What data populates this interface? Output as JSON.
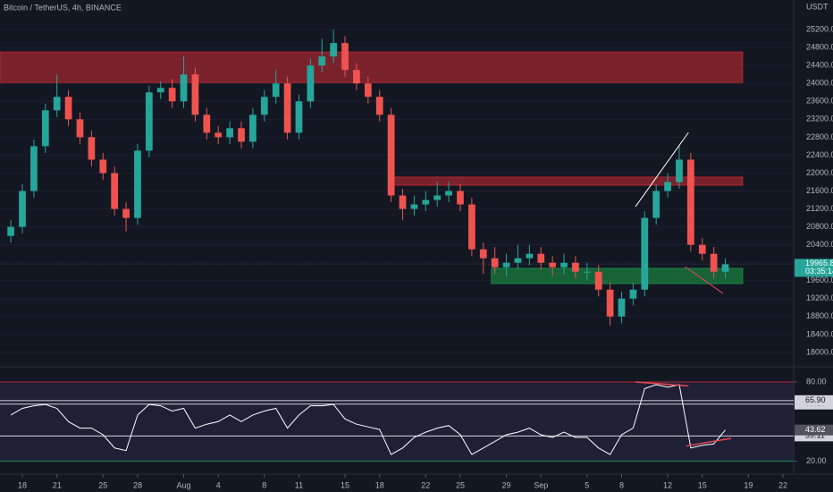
{
  "chart_data": [
    {
      "type": "candlestick",
      "title": "Bitcoin / TetherUS, 4h, BINANCE",
      "y_label": "USDT",
      "x": [
        -1,
        0,
        1,
        2,
        3,
        4,
        5,
        6,
        7,
        8,
        9,
        10,
        11,
        12,
        13,
        14,
        15,
        16,
        17,
        18,
        19,
        20,
        21,
        22,
        23,
        24,
        25,
        26,
        27,
        28,
        29,
        30,
        31,
        32,
        33,
        34,
        35,
        36,
        37,
        38,
        39,
        40,
        41,
        42,
        43,
        44,
        45,
        46,
        47,
        48,
        49,
        50,
        51,
        52,
        53,
        54,
        55,
        56,
        57,
        58,
        59,
        60,
        61
      ],
      "open": [
        20600,
        20800,
        21600,
        22600,
        23400,
        23700,
        23200,
        22800,
        22300,
        22000,
        21200,
        21000,
        22500,
        23800,
        23900,
        23600,
        24200,
        23300,
        22900,
        22800,
        23000,
        22700,
        23300,
        23700,
        24000,
        22900,
        23600,
        24400,
        24600,
        24900,
        24300,
        24000,
        23700,
        23300,
        21500,
        21200,
        21300,
        21400,
        21500,
        21600,
        21300,
        20300,
        20100,
        19900,
        20000,
        20100,
        20200,
        20000,
        19900,
        20000,
        19800,
        19800,
        19400,
        18800,
        19200,
        19400,
        21000,
        21600,
        21800,
        22300,
        20400,
        20200,
        19800
      ],
      "high": [
        20950,
        21750,
        22750,
        23550,
        24200,
        23850,
        23350,
        22950,
        22450,
        22150,
        21350,
        22650,
        23950,
        24050,
        24100,
        24600,
        24350,
        23450,
        23050,
        23150,
        23150,
        23450,
        23850,
        24300,
        24150,
        23750,
        24550,
        25000,
        25200,
        25050,
        24450,
        24150,
        23850,
        23450,
        21650,
        21500,
        21600,
        21800,
        21800,
        21750,
        21450,
        20450,
        20350,
        20200,
        20400,
        20400,
        20350,
        20150,
        20200,
        20150,
        20000,
        19950,
        19550,
        19350,
        19550,
        21150,
        21750,
        22000,
        22600,
        22450,
        20550,
        20350,
        20100
      ],
      "low": [
        20450,
        20650,
        21450,
        22450,
        23250,
        23050,
        22650,
        22150,
        21850,
        21050,
        20700,
        20850,
        22350,
        23650,
        23450,
        23450,
        23150,
        22750,
        22650,
        22650,
        22550,
        22550,
        23150,
        23550,
        22750,
        22750,
        23450,
        24250,
        24450,
        24150,
        23850,
        23550,
        23150,
        21350,
        20950,
        21050,
        21150,
        21250,
        21350,
        21150,
        20150,
        19750,
        19750,
        19700,
        19850,
        19950,
        19850,
        19700,
        19750,
        19650,
        19600,
        19250,
        18600,
        18650,
        19050,
        19250,
        20850,
        21450,
        21650,
        20250,
        20050,
        19650,
        19650
      ],
      "close": [
        20800,
        21600,
        22600,
        23400,
        23700,
        23200,
        22800,
        22300,
        22000,
        21200,
        21000,
        22500,
        23800,
        23900,
        23600,
        24200,
        23300,
        22900,
        22800,
        23000,
        22700,
        23300,
        23700,
        24000,
        22900,
        23600,
        24400,
        24600,
        24900,
        24300,
        24000,
        23700,
        23300,
        21500,
        21200,
        21300,
        21400,
        21500,
        21600,
        21300,
        20300,
        20100,
        19900,
        20000,
        20100,
        20200,
        20000,
        19900,
        20000,
        19800,
        19800,
        19400,
        18800,
        19200,
        19400,
        21000,
        21600,
        21800,
        22300,
        20400,
        20200,
        19800,
        19965
      ],
      "up_color": "#26a69a",
      "down_color": "#ef5350",
      "xlim": [
        -1.94,
        66.93
      ],
      "ylim": [
        17720,
        25860
      ],
      "yticks": [
        {
          "value": 18000,
          "label": "18000.00"
        },
        {
          "value": 18400,
          "label": "18400.00"
        },
        {
          "value": 18800,
          "label": "18800.00"
        },
        {
          "value": 19200,
          "label": "19200.00"
        },
        {
          "value": 19600,
          "label": "19600.00"
        },
        {
          "value": 20000,
          "label": "20000.00"
        },
        {
          "value": 20400,
          "label": "20400.00"
        },
        {
          "value": 20800,
          "label": "20800.00"
        },
        {
          "value": 21200,
          "label": "21200.00"
        },
        {
          "value": 21600,
          "label": "21600.00"
        },
        {
          "value": 22000,
          "label": "22000.00"
        },
        {
          "value": 22400,
          "label": "22400.00"
        },
        {
          "value": 22800,
          "label": "22800.00"
        },
        {
          "value": 23200,
          "label": "23200.00"
        },
        {
          "value": 23600,
          "label": "23600.00"
        },
        {
          "value": 24000,
          "label": "24000.00"
        },
        {
          "value": 24400,
          "label": "24400.00"
        },
        {
          "value": 24800,
          "label": "24800.00"
        },
        {
          "value": 25200,
          "label": "25200.00"
        }
      ],
      "last_price": {
        "value": 19965.82,
        "label": "19965.82"
      },
      "countdown": "03:35:14",
      "zones": [
        {
          "x": [
            -1.94,
            62.5
          ],
          "y": [
            24020,
            24700
          ],
          "color": "#b22833"
        },
        {
          "x": [
            32.2,
            62.5
          ],
          "y": [
            21730,
            21910
          ],
          "color": "#b22833"
        },
        {
          "x": [
            40.7,
            62.5
          ],
          "y": [
            19535,
            19875
          ],
          "color": "#1b8a45"
        }
      ],
      "lines": [
        {
          "x": [
            53.2,
            57.8
          ],
          "y": [
            21250,
            22905
          ],
          "color": "#ffffff"
        },
        {
          "x": [
            57.5,
            60.8
          ],
          "y": [
            19915,
            19315
          ],
          "color": "#e84855"
        }
      ]
    },
    {
      "type": "line",
      "color": "#ffffff",
      "x": [
        -1,
        0,
        1,
        2,
        3,
        4,
        5,
        6,
        7,
        8,
        9,
        10,
        11,
        12,
        13,
        14,
        15,
        16,
        17,
        18,
        19,
        20,
        21,
        22,
        23,
        24,
        25,
        26,
        27,
        28,
        29,
        30,
        31,
        32,
        33,
        34,
        35,
        36,
        37,
        38,
        39,
        40,
        41,
        42,
        43,
        44,
        45,
        46,
        47,
        48,
        49,
        50,
        51,
        52,
        53,
        54,
        55,
        56,
        57,
        58,
        59,
        60,
        61
      ],
      "values": [
        55,
        60,
        62,
        63,
        60,
        50,
        45,
        45,
        40,
        30,
        28,
        55,
        63,
        62,
        58,
        60,
        45,
        48,
        50,
        55,
        50,
        55,
        58,
        60,
        45,
        55,
        62,
        62,
        63,
        52,
        48,
        46,
        44,
        25,
        30,
        38,
        42,
        45,
        47,
        40,
        25,
        30,
        35,
        40,
        42,
        45,
        40,
        38,
        42,
        38,
        38,
        30,
        25,
        40,
        45,
        75,
        78,
        76,
        78,
        30,
        32,
        33,
        43.62
      ],
      "xlim": [
        -1.94,
        66.93
      ],
      "ylim": [
        15.6,
        90.2
      ],
      "yticks": [
        {
          "value": 80,
          "label": "80.00"
        },
        {
          "value": 20,
          "label": "20.00"
        }
      ],
      "upper_band": 80,
      "lower_band": 20,
      "levels": [
        {
          "value": 63.25,
          "label": "63.25"
        },
        {
          "value": 65.9,
          "label": "65.90"
        },
        {
          "value": 39.11,
          "label": "39.11"
        }
      ],
      "last_value": {
        "value": 43.62,
        "label": "43.62"
      },
      "lines": [
        {
          "x": [
            53.2,
            57.8
          ],
          "y": [
            80,
            77
          ],
          "color": "#e84855"
        },
        {
          "x": [
            57.6,
            61.5
          ],
          "y": [
            31.5,
            37.3
          ],
          "color": "#e84855"
        }
      ],
      "xticks": [
        {
          "value": 0,
          "label": "18"
        },
        {
          "value": 3,
          "label": "21"
        },
        {
          "value": 7,
          "label": "25"
        },
        {
          "value": 10,
          "label": "28"
        },
        {
          "value": 14,
          "label": "Aug"
        },
        {
          "value": 17,
          "label": "4"
        },
        {
          "value": 21,
          "label": "8"
        },
        {
          "value": 24,
          "label": "11"
        },
        {
          "value": 28,
          "label": "15"
        },
        {
          "value": 31,
          "label": "18"
        },
        {
          "value": 35,
          "label": "22"
        },
        {
          "value": 38,
          "label": "25"
        },
        {
          "value": 42,
          "label": "29"
        },
        {
          "value": 45,
          "label": "Sep"
        },
        {
          "value": 49,
          "label": "5"
        },
        {
          "value": 52,
          "label": "8"
        },
        {
          "value": 56,
          "label": "12"
        },
        {
          "value": 59,
          "label": "15"
        },
        {
          "value": 63,
          "label": "19"
        },
        {
          "value": 66,
          "label": "22"
        }
      ]
    }
  ]
}
